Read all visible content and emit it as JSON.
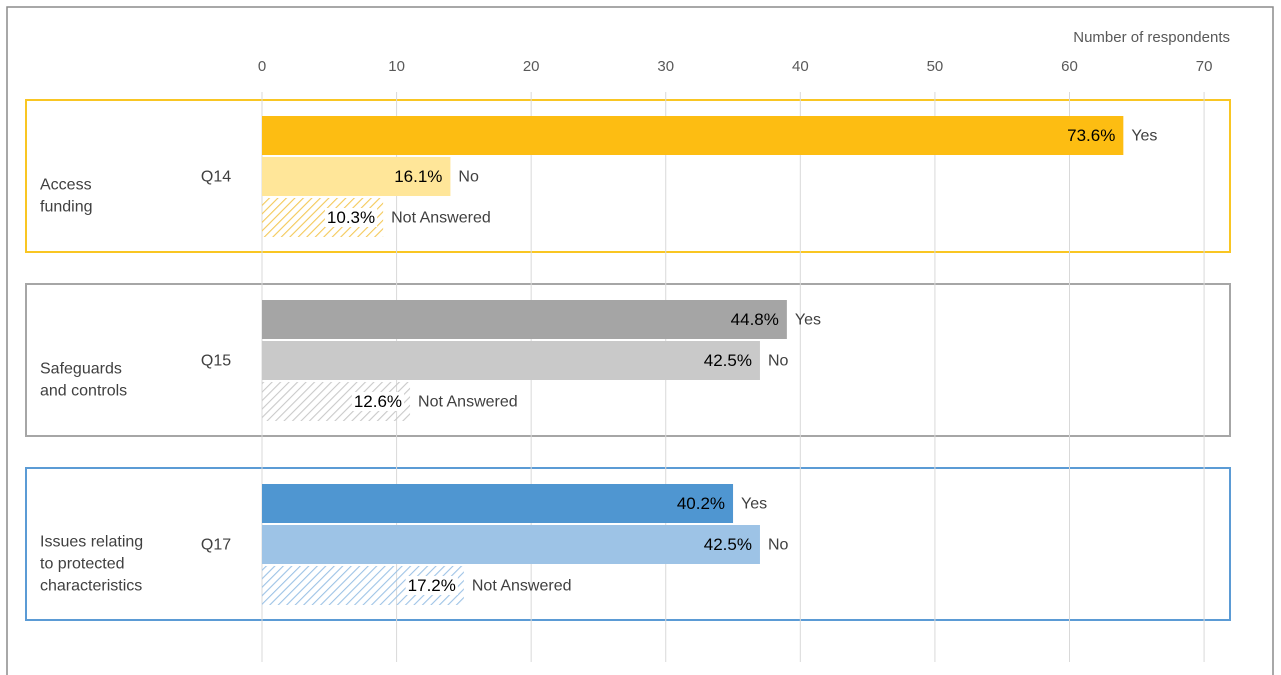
{
  "chart_data": {
    "type": "bar",
    "orientation": "horizontal",
    "x_axis_label": "Number of respondents",
    "xlim": [
      0,
      72
    ],
    "xticks": [
      0,
      10,
      20,
      30,
      40,
      50,
      60,
      70
    ],
    "grid": true,
    "categories": [
      "Q14",
      "Q15",
      "Q17"
    ],
    "group_labels": [
      [
        "Access",
        "funding"
      ],
      [
        "Safeguards",
        "and controls"
      ],
      [
        "Issues relating",
        "to protected",
        "characteristics"
      ]
    ],
    "group_colors": [
      "#f9c623",
      "#a6a6a6",
      "#5b9bd5"
    ],
    "series": [
      {
        "name": "Yes",
        "colors": [
          "#fdbd12",
          "#a5a5a5",
          "#4f96d1"
        ],
        "hatched": false,
        "values": [
          64,
          39,
          35
        ],
        "value_labels": [
          "73.6%",
          "44.8%",
          "40.2%"
        ]
      },
      {
        "name": "No",
        "colors": [
          "#ffe699",
          "#c9c9c9",
          "#9dc3e6"
        ],
        "hatched": false,
        "values": [
          14,
          37,
          37
        ],
        "value_labels": [
          "16.1%",
          "42.5%",
          "42.5%"
        ]
      },
      {
        "name": "Not Answered",
        "colors": [
          "#f4c95a",
          "#c9c9c9",
          "#9dc3e6"
        ],
        "hatched": true,
        "values": [
          9,
          11,
          15
        ],
        "value_labels": [
          "10.3%",
          "12.6%",
          "17.2%"
        ]
      }
    ]
  }
}
